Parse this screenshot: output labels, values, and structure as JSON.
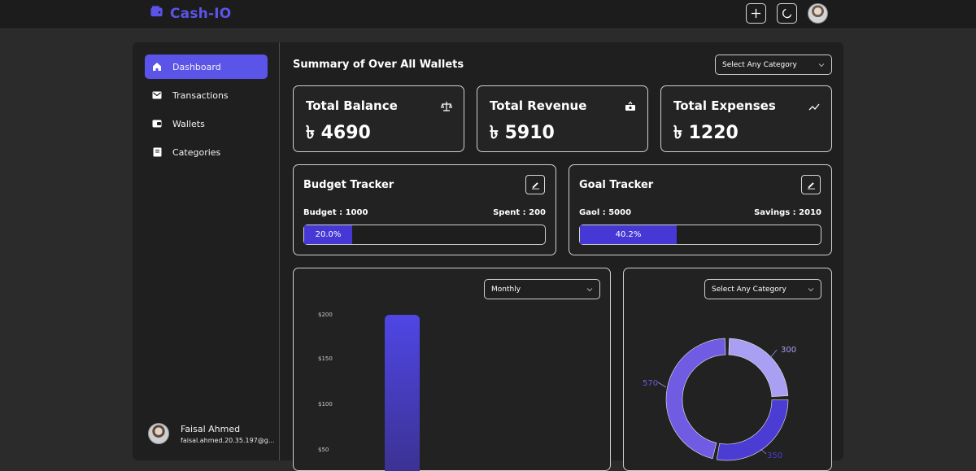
{
  "app": {
    "name": "Cash-IO"
  },
  "header": {
    "add_icon": "plus-icon",
    "theme_icon": "moon-icon"
  },
  "sidebar": {
    "items": [
      {
        "label": "Dashboard",
        "icon": "home-icon",
        "active": true
      },
      {
        "label": "Transactions",
        "icon": "mail-icon"
      },
      {
        "label": "Wallets",
        "icon": "wallet-icon"
      },
      {
        "label": "Categories",
        "icon": "book-icon"
      }
    ],
    "user": {
      "name": "Faisal Ahmed",
      "email": "faisal.ahmed.20.35.197@g..."
    }
  },
  "main": {
    "title": "Summary of Over All Wallets",
    "category_select": "Select Any Category",
    "stats": [
      {
        "label": "Total Balance",
        "value": "৳ 4690",
        "icon": "scale-icon"
      },
      {
        "label": "Total Revenue",
        "value": "৳ 5910",
        "icon": "money-icon"
      },
      {
        "label": "Total Expenses",
        "value": "৳ 1220",
        "icon": "trend-icon"
      }
    ],
    "budget": {
      "title": "Budget Tracker",
      "left": "Budget : 1000",
      "right": "Spent : 200",
      "percent_text": "20.0%",
      "fraction": 0.2
    },
    "goal": {
      "title": "Goal Tracker",
      "left": "Gaol : 5000",
      "right": "Savings : 2010",
      "percent_text": "40.2%",
      "fraction": 0.402
    },
    "bar_chart": {
      "period_select": "Monthly"
    },
    "donut_chart": {
      "category_select": "Select Any Category"
    }
  },
  "chart_data": [
    {
      "type": "bar",
      "categories": [
        ""
      ],
      "values": [
        200
      ],
      "ytick_labels": [
        "$200",
        "$150",
        "$100",
        "$50"
      ],
      "ylim": [
        0,
        200
      ]
    },
    {
      "type": "pie",
      "labels": [
        "300",
        "570",
        "350"
      ],
      "values": [
        300,
        570,
        350
      ],
      "colors": [
        "#a9a0f3",
        "#6f5ce3",
        "#4b3dd3"
      ]
    }
  ],
  "colors": {
    "accent": "#5b54e8",
    "progress": "#4538d4"
  }
}
